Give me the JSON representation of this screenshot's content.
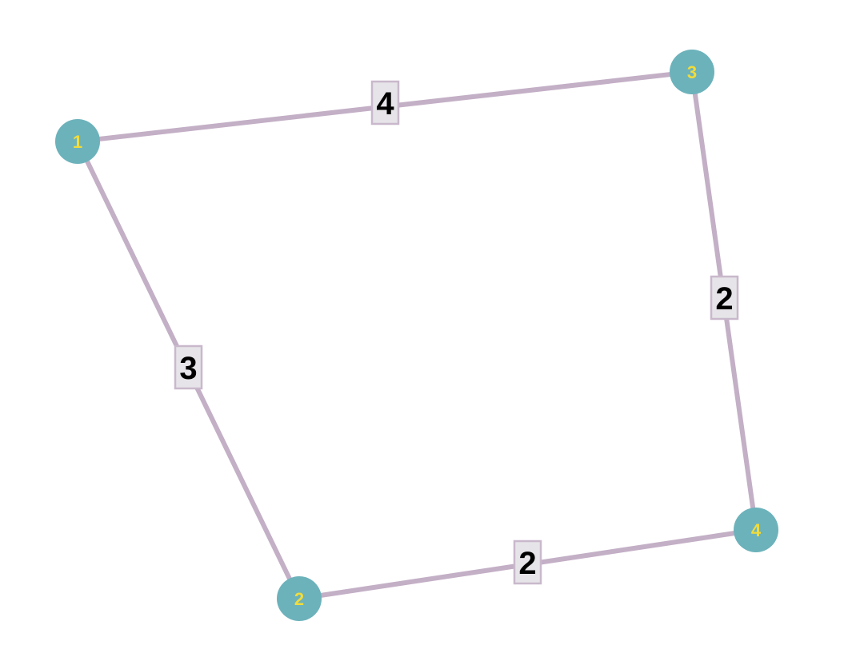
{
  "graph": {
    "nodes": [
      {
        "id": "1",
        "label": "1"
      },
      {
        "id": "2",
        "label": "2"
      },
      {
        "id": "3",
        "label": "3"
      },
      {
        "id": "4",
        "label": "4"
      }
    ],
    "edges": [
      {
        "from": "1",
        "to": "3",
        "weight": "4"
      },
      {
        "from": "1",
        "to": "2",
        "weight": "3"
      },
      {
        "from": "3",
        "to": "4",
        "weight": "2"
      },
      {
        "from": "2",
        "to": "4",
        "weight": "2"
      }
    ],
    "colors": {
      "node_fill": "#6cb2bb",
      "node_label": "#f2dc3a",
      "edge": "#c3afc6",
      "weight_box": "#e6e4e8",
      "weight_text": "#000000"
    }
  }
}
